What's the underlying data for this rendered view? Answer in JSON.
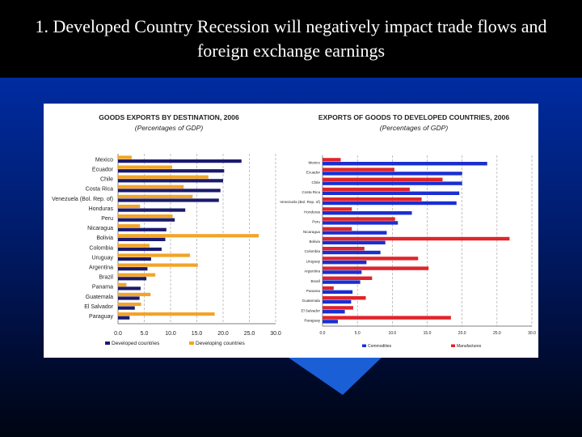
{
  "slide": {
    "title": "1. Developed Country Recession will negatively impact trade flows and foreign exchange earnings"
  },
  "colors": {
    "background_top": "#0033b8",
    "background_bottom": "#000512",
    "title_bar": "#000000",
    "developed": "#1a1a6e",
    "developing": "#f2a427",
    "commodities": "#1a2fd1",
    "manufactures": "#e0242b",
    "arrow": "#1b5fd6"
  },
  "chart_data": [
    {
      "type": "bar",
      "orientation": "horizontal",
      "title": "GOODS EXPORTS BY DESTINATION, 2006",
      "subtitle": "(Percentages of GDP)",
      "categories": [
        "Mexico",
        "Ecuador",
        "Chile",
        "Costa Rica",
        "Venezuela (Bol. Rep. of)",
        "Honduras",
        "Peru",
        "Nicaragua",
        "Bolivia",
        "Colombia",
        "Uruguay",
        "Argentina",
        "Brazil",
        "Panama",
        "Guatemala",
        "El Salvador",
        "Paraguay"
      ],
      "series": [
        {
          "name": "Developed countries",
          "color": "#1a1a6e",
          "values": [
            23.5,
            20.2,
            20.0,
            19.5,
            19.2,
            12.8,
            10.8,
            9.2,
            9.0,
            8.3,
            6.3,
            5.6,
            5.4,
            4.3,
            4.1,
            3.2,
            2.2
          ]
        },
        {
          "name": "Developing countries",
          "color": "#f2a427",
          "values": [
            2.6,
            10.3,
            17.2,
            12.5,
            14.2,
            4.2,
            10.4,
            4.2,
            26.8,
            6.0,
            13.7,
            15.2,
            7.1,
            1.6,
            6.2,
            4.4,
            18.4
          ]
        }
      ],
      "xlim": [
        0,
        30
      ],
      "xticks": [
        "0.0",
        "5.0",
        "10.0",
        "15.0",
        "20.0",
        "25.0",
        "30.0"
      ],
      "grid": "vertical dashed",
      "legend": "bottom"
    },
    {
      "type": "bar",
      "orientation": "horizontal",
      "title": "EXPORTS OF GOODS TO DEVELOPED COUNTRIES, 2006",
      "subtitle": "(Percentages of GDP)",
      "categories": [
        "Mexico",
        "Ecuador",
        "Chile",
        "Costa Rica",
        "Venezuela (Bol. Rep. of)",
        "Honduras",
        "Peru",
        "Nicaragua",
        "Bolivia",
        "Colombia",
        "Uruguay",
        "Argentina",
        "Brazil",
        "Panama",
        "Guatemala",
        "El Salvador",
        "Paraguay"
      ],
      "series": [
        {
          "name": "Commodities",
          "color": "#1a2fd1",
          "values": [
            23.6,
            20.0,
            20.0,
            19.6,
            19.2,
            12.8,
            10.8,
            9.2,
            9.0,
            8.3,
            6.3,
            5.6,
            5.4,
            4.3,
            4.1,
            3.2,
            2.2
          ]
        },
        {
          "name": "Manufactures",
          "color": "#e0242b",
          "values": [
            2.6,
            10.3,
            17.2,
            12.5,
            14.2,
            4.2,
            10.4,
            4.2,
            26.8,
            6.0,
            13.7,
            15.2,
            7.1,
            1.6,
            6.2,
            4.4,
            18.4
          ]
        }
      ],
      "xlim": [
        0,
        30
      ],
      "xticks": [
        "0.0",
        "5.0",
        "10.0",
        "15.0",
        "20.0",
        "25.0",
        "30.0"
      ],
      "grid": "vertical dashed",
      "legend": "bottom"
    }
  ]
}
